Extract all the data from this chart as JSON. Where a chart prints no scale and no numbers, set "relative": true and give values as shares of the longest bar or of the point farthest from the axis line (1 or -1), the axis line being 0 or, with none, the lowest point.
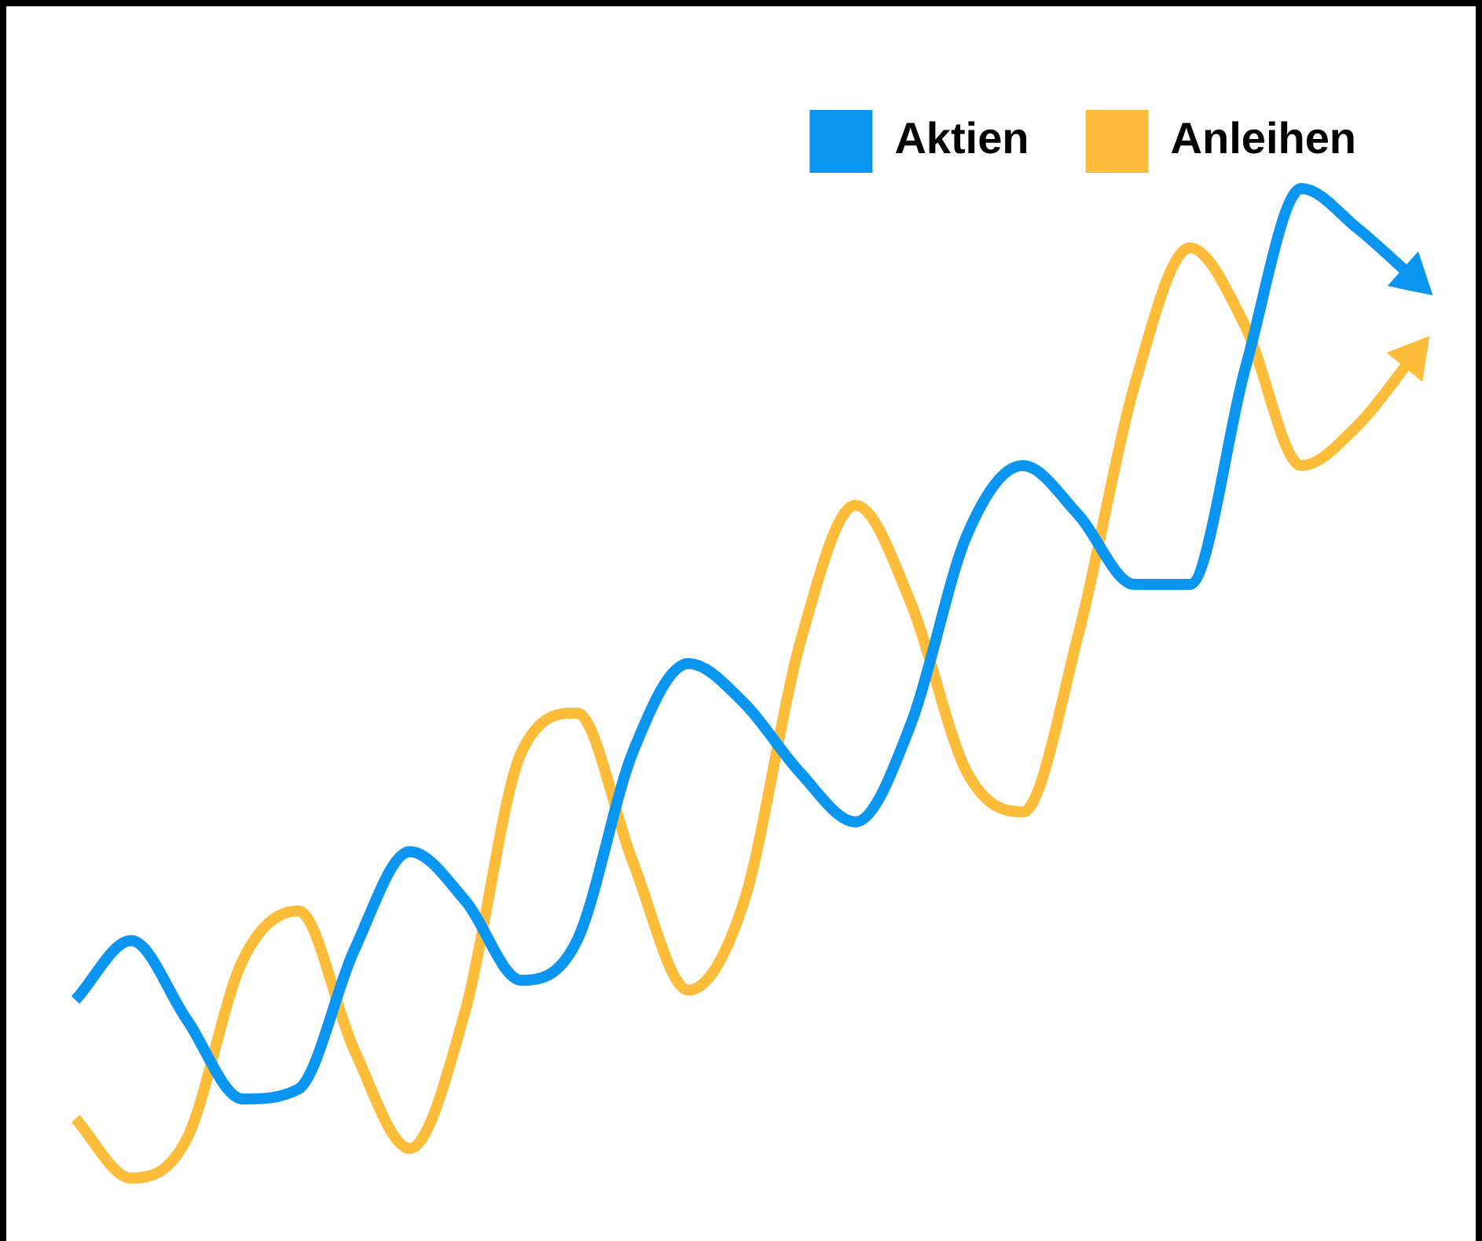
{
  "chart_data": {
    "type": "line",
    "relative": true,
    "legend": "top right",
    "marker": "none",
    "line_style": "solid",
    "grid": false,
    "tick_labels": false,
    "categories": [
      null,
      null,
      null,
      null,
      null,
      null,
      null,
      null,
      null,
      null,
      null,
      null,
      null,
      null,
      null,
      null,
      null,
      null,
      null,
      null,
      null,
      null,
      null,
      null,
      null
    ],
    "series": [
      {
        "name": "Aktien",
        "color": "#0a95f0",
        "values": [
          0.18,
          0.24,
          0.16,
          0.08,
          0.09,
          0.23,
          0.33,
          0.28,
          0.2,
          0.24,
          0.43,
          0.52,
          0.48,
          0.41,
          0.36,
          0.46,
          0.65,
          0.72,
          0.67,
          0.6,
          0.6,
          0.82,
          1.0,
          0.96,
          0.91
        ]
      },
      {
        "name": "Anleihen",
        "color": "#fdbd3a",
        "values": [
          0.06,
          0.0,
          0.04,
          0.22,
          0.27,
          0.13,
          0.03,
          0.17,
          0.43,
          0.47,
          0.32,
          0.19,
          0.28,
          0.54,
          0.68,
          0.58,
          0.41,
          0.37,
          0.55,
          0.8,
          0.94,
          0.86,
          0.72,
          0.76,
          0.83
        ]
      }
    ]
  }
}
